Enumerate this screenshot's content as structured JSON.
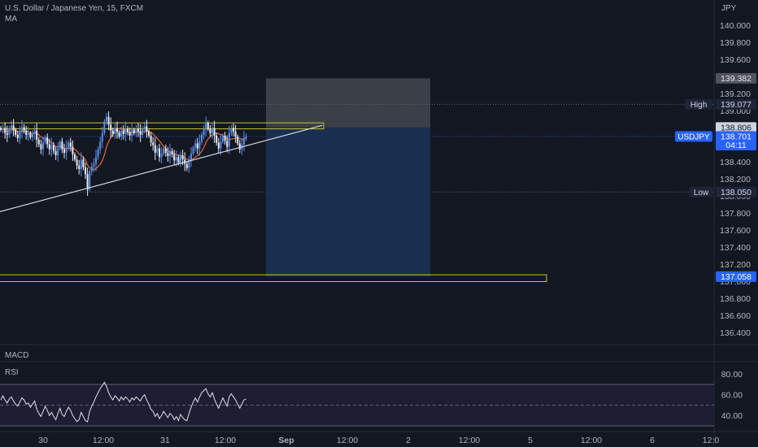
{
  "header": {
    "symbol_title": "U.S. Dollar / Japanese Yen, 15, FXCM",
    "indicator_ma": "MA",
    "currency": "JPY"
  },
  "panes": {
    "macd_label": "MACD",
    "rsi_label": "RSI"
  },
  "colors": {
    "background": "#131722",
    "grid_dotted": "#2a2e39",
    "candle_up": "#5b8ee8",
    "candle_down": "#e8ecf5",
    "ma_line": "#e8643c",
    "trendline": "#d1d4dc",
    "zone_outline": "#c9c230",
    "position_stop": "#5d6068",
    "position_target": "#1c3357",
    "label_blue": "#2962ff",
    "label_dark": "#1e2538",
    "label_grey": "#50535e",
    "rsi_band": "#1f1d33",
    "rsi_line": "#e0e3eb"
  },
  "chart_data": [
    {
      "type": "candlestick",
      "title": "U.S. Dollar / Japanese Yen, 15, FXCM",
      "y_unit": "JPY",
      "ylim": [
        136.3,
        140.1
      ],
      "y_ticks": [
        "140.000",
        "139.800",
        "139.600",
        "139.400",
        "139.200",
        "139.000",
        "138.800",
        "138.600",
        "138.400",
        "138.200",
        "138.000",
        "137.800",
        "137.600",
        "137.400",
        "137.200",
        "137.000",
        "136.800",
        "136.600",
        "136.400"
      ],
      "x_ticks": [
        "30",
        "12:00",
        "31",
        "12:00",
        "Sep",
        "12:00",
        "2",
        "12:00",
        "5",
        "12:00",
        "6",
        "12:0"
      ],
      "price_labels": [
        {
          "text": "139.382",
          "kind": "grey",
          "value": 139.382
        },
        {
          "text": "High",
          "kind": "dark",
          "value": 139.077,
          "is_tag": true
        },
        {
          "text": "139.077",
          "kind": "dark",
          "value": 139.077
        },
        {
          "text": "138.806",
          "kind": "light",
          "value": 138.806
        },
        {
          "text": "USDJPY",
          "kind": "blue",
          "value": 138.701,
          "is_tag": true
        },
        {
          "text": "138.701",
          "kind": "blue",
          "value": 138.701
        },
        {
          "text": "04:11",
          "kind": "blue",
          "value": 138.6
        },
        {
          "text": "Low",
          "kind": "dark",
          "value": 138.05,
          "is_tag": true
        },
        {
          "text": "138.050",
          "kind": "dark",
          "value": 138.05
        },
        {
          "text": "137.058",
          "kind": "blue",
          "value": 137.058
        }
      ],
      "series": [
        {
          "name": "USDJPY",
          "close": [
            138.78,
            138.8,
            138.74,
            138.72,
            138.79,
            138.83,
            138.78,
            138.72,
            138.68,
            138.76,
            138.81,
            138.77,
            138.72,
            138.74,
            138.69,
            138.73,
            138.77,
            138.66,
            138.61,
            138.55,
            138.63,
            138.69,
            138.61,
            138.55,
            138.6,
            138.53,
            138.48,
            138.56,
            138.64,
            138.55,
            138.51,
            138.57,
            138.63,
            138.58,
            138.49,
            138.43,
            138.36,
            138.32,
            138.43,
            138.34,
            138.26,
            138.08,
            138.29,
            138.35,
            138.38,
            138.46,
            138.55,
            138.64,
            138.74,
            138.88,
            138.93,
            138.84,
            138.77,
            138.73,
            138.8,
            138.75,
            138.7,
            138.77,
            138.73,
            138.79,
            138.75,
            138.71,
            138.78,
            138.74,
            138.79,
            138.76,
            138.72,
            138.79,
            138.82,
            138.76,
            138.71,
            138.63,
            138.6,
            138.51,
            138.56,
            138.46,
            138.5,
            138.56,
            138.51,
            138.47,
            138.53,
            138.49,
            138.42,
            138.46,
            138.39,
            138.48,
            138.43,
            138.38,
            138.33,
            138.42,
            138.5,
            138.57,
            138.62,
            138.56,
            138.64,
            138.72,
            138.78,
            138.86,
            138.79,
            138.74,
            138.8,
            138.71,
            138.63,
            138.56,
            138.64,
            138.71,
            138.65,
            138.58,
            138.74,
            138.8,
            138.76,
            138.7,
            138.62,
            138.55,
            138.61,
            138.68,
            138.7
          ],
          "date_range": "Aug 30 – Aug 31"
        },
        {
          "name": "MA",
          "type": "line"
        }
      ],
      "annotations": [
        "ascending support trendline from ~137.82 (Aug 29) rising to ~138.83 (Sep 1)",
        "resistance zone 138.79–138.86",
        "support zone 137.00–137.08",
        "short position tool: entry 138.806, stop 139.382, target 137.058",
        "dotted lines at High 139.077, Low 138.050 and last price 138.701"
      ]
    },
    {
      "type": "line",
      "title": "RSI",
      "ylim": [
        33,
        73
      ],
      "y_ticks": [
        "80.00",
        "60.00",
        "40.00"
      ],
      "band": [
        30,
        70
      ],
      "midline": 50,
      "series": [
        {
          "name": "RSI",
          "values": [
            55,
            59,
            55,
            52,
            56,
            58,
            54,
            51,
            49,
            53,
            57,
            55,
            51,
            52,
            48,
            51,
            54,
            46,
            42,
            39,
            44,
            49,
            45,
            40,
            43,
            39,
            36,
            42,
            47,
            41,
            39,
            44,
            48,
            45,
            40,
            37,
            34,
            36,
            43,
            39,
            35,
            34,
            44,
            49,
            53,
            58,
            62,
            66,
            69,
            72,
            68,
            62,
            58,
            55,
            59,
            57,
            54,
            58,
            55,
            58,
            56,
            53,
            57,
            55,
            58,
            56,
            54,
            58,
            60,
            55,
            51,
            46,
            44,
            39,
            42,
            37,
            40,
            44,
            41,
            38,
            42,
            40,
            36,
            39,
            35,
            41,
            38,
            36,
            35,
            42,
            48,
            53,
            57,
            53,
            58,
            62,
            64,
            66,
            61,
            58,
            62,
            56,
            51,
            47,
            52,
            57,
            53,
            49,
            58,
            61,
            58,
            55,
            51,
            47,
            51,
            55,
            56
          ]
        }
      ]
    }
  ]
}
